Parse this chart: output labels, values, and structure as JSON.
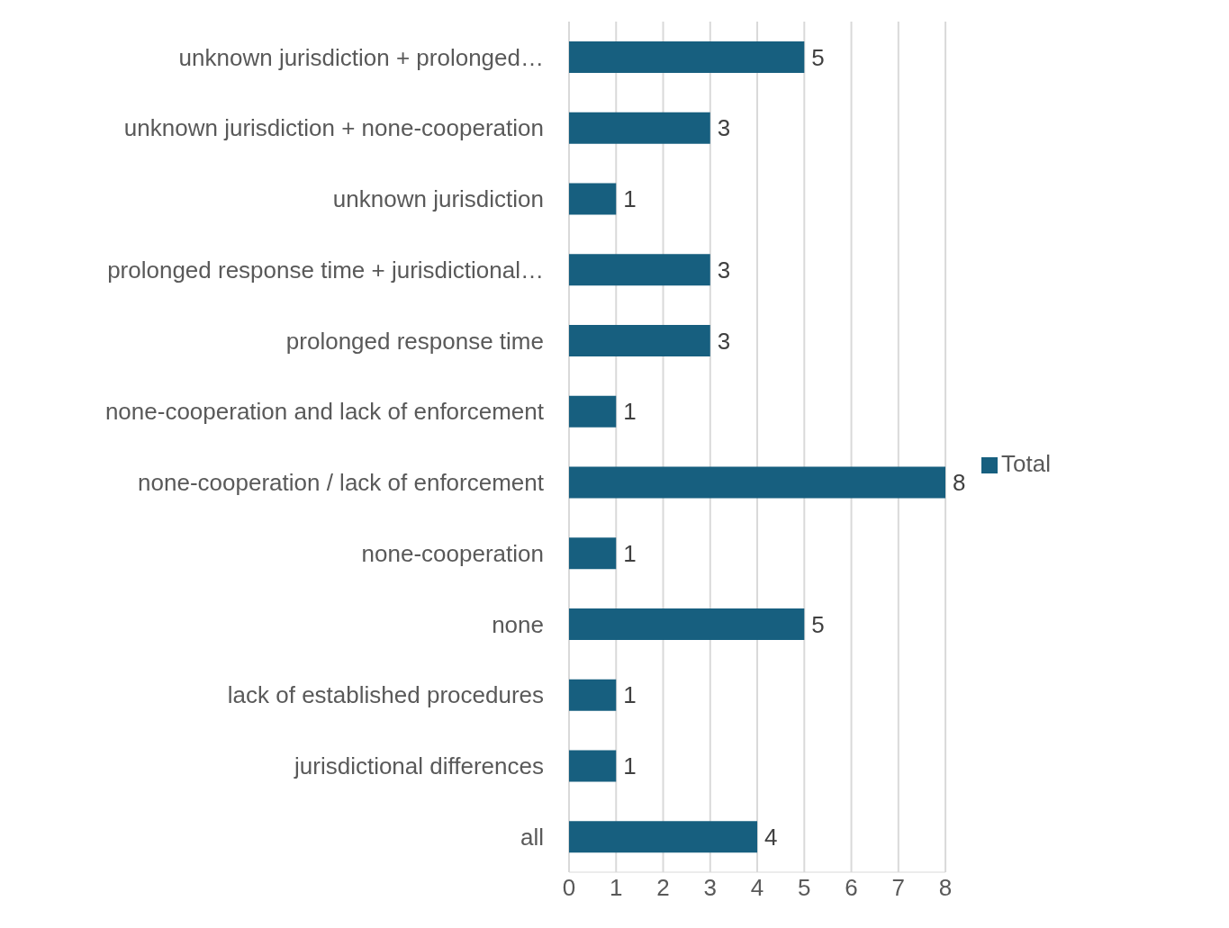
{
  "chart_data": {
    "type": "bar",
    "orientation": "horizontal",
    "categories": [
      "unknown jurisdiction + prolonged…",
      "unknown jurisdiction + none-cooperation",
      "unknown jurisdiction",
      "prolonged response time + jurisdictional…",
      "prolonged response time",
      "none-cooperation and lack of enforcement",
      "none-cooperation / lack of enforcement",
      "none-cooperation",
      "none",
      "lack of established procedures",
      "jurisdictional differences",
      "all"
    ],
    "series": [
      {
        "name": "Total",
        "color": "#175f7f",
        "values": [
          5,
          3,
          1,
          3,
          3,
          1,
          8,
          1,
          5,
          1,
          1,
          4
        ]
      }
    ],
    "xlim": [
      0,
      8
    ],
    "xticks": [
      0,
      1,
      2,
      3,
      4,
      5,
      6,
      7,
      8
    ],
    "grid": "x",
    "legend": "right",
    "data_labels": true
  }
}
